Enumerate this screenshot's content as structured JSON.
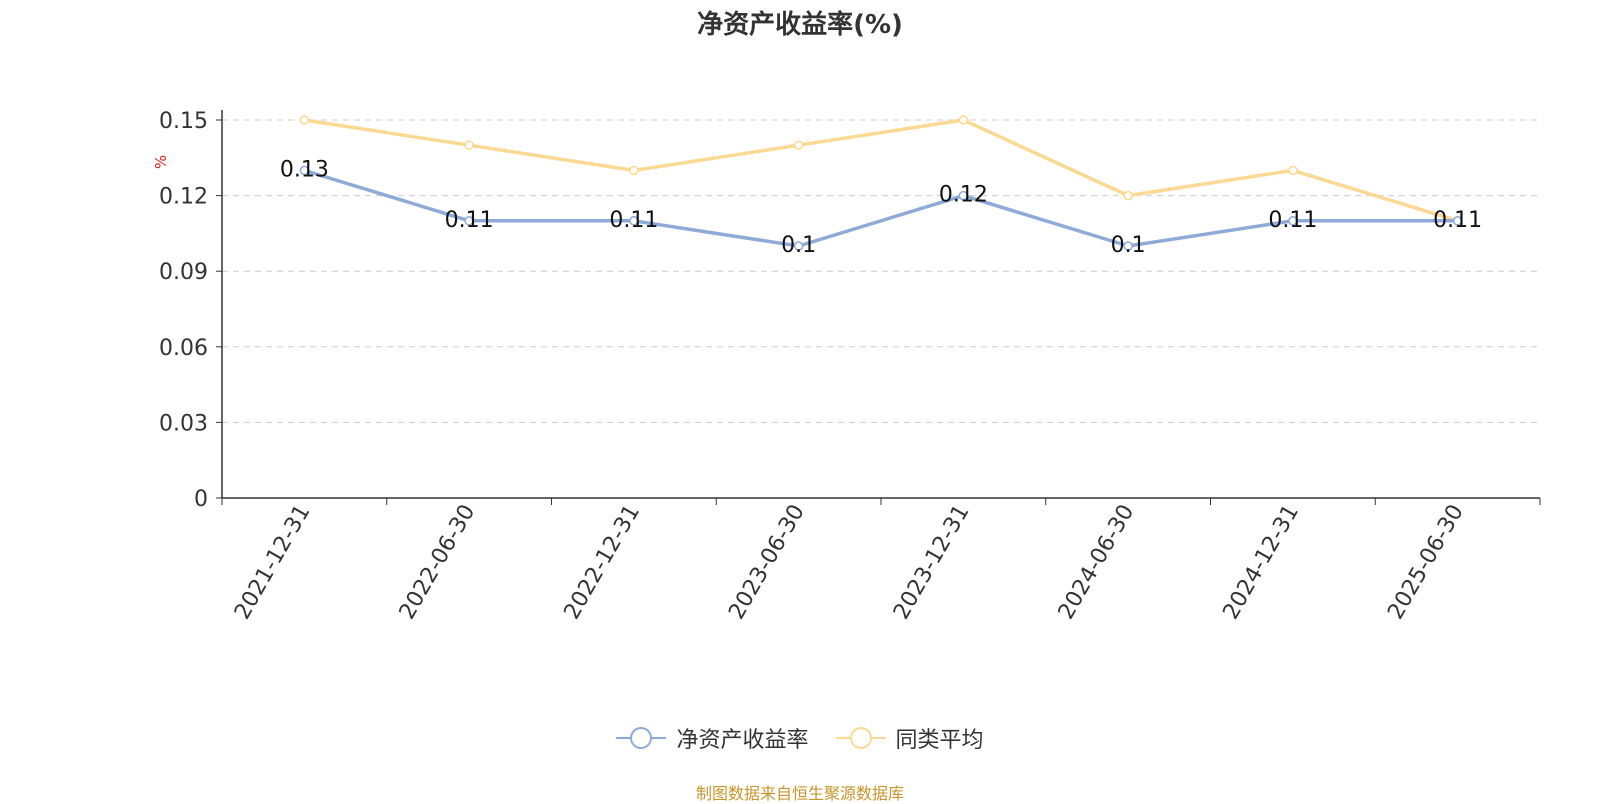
{
  "chart_data": {
    "type": "line",
    "title": "净资产收益率(%)",
    "ylabel": "%",
    "xlabel": "",
    "categories": [
      "2021-12-31",
      "2022-06-30",
      "2022-12-31",
      "2023-06-30",
      "2023-12-31",
      "2024-06-30",
      "2024-12-31",
      "2025-06-30"
    ],
    "ylim": [
      0,
      0.15
    ],
    "yticks": [
      "0",
      "0.03",
      "0.06",
      "0.09",
      "0.12",
      "0.15"
    ],
    "grid": true,
    "legend_position": "bottom",
    "series": [
      {
        "name": "净资产收益率",
        "values": [
          0.13,
          0.11,
          0.11,
          0.1,
          0.12,
          0.1,
          0.11,
          0.11
        ],
        "labels": [
          "0.13",
          "0.11",
          "0.11",
          "0.1",
          "0.12",
          "0.1",
          "0.11",
          "0.11"
        ],
        "color": "#8eaad8"
      },
      {
        "name": "同类平均",
        "values": [
          0.15,
          0.14,
          0.13,
          0.14,
          0.15,
          0.12,
          0.13,
          0.11
        ],
        "color": "#fbd992"
      }
    ]
  },
  "footer": {
    "source": "制图数据来自恒生聚源数据库"
  },
  "colors": {
    "axis": "#333333",
    "grid": "#cccccc",
    "ylabel": "#e02020",
    "source": "#c8952a"
  }
}
